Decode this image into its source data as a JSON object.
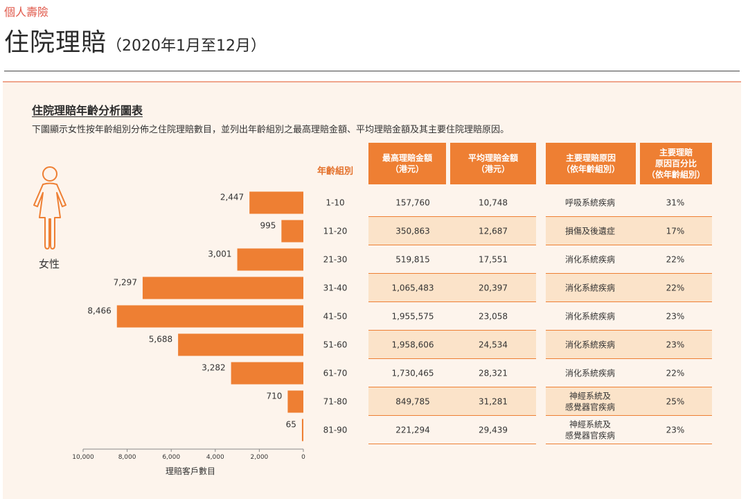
{
  "header": {
    "breadcrumb": "個人壽險",
    "title": "住院理賠",
    "period": "（2020年1月至12月）"
  },
  "section": {
    "title": "住院理賠年齡分析圖表",
    "description": "下圖顯示女性按年齡組別分佈之住院理賠數目，並列出年齡組別之最高理賠金額、平均理賠金額及其主要住院理賠原因。"
  },
  "icon": {
    "name": "female-person-icon",
    "label": "女性"
  },
  "colors": {
    "accent": "#ee7f33",
    "band": "#fbe3c9",
    "panel": "#fdf4ec",
    "breadcrumb": "#e0584a"
  },
  "table_headers": {
    "age_group": "年齡組別",
    "max_claim_line1": "最高理賠金額",
    "max_claim_line2": "（港元）",
    "avg_claim_line1": "平均理賠金額",
    "avg_claim_line2": "（港元）",
    "reason_line1": "主要理賠原因",
    "reason_line2": "（依年齡組別）",
    "pct_line1": "主要理賠",
    "pct_line2": "原因百分比",
    "pct_line3": "（依年齡組別）"
  },
  "chart_data": {
    "type": "bar",
    "orientation": "horizontal",
    "direction": "right-to-left",
    "xlabel": "理賠客戶數目",
    "xlim": [
      10000,
      0
    ],
    "xticks": [
      "10,000",
      "8,000",
      "6,000",
      "4,000",
      "2,000",
      "0"
    ],
    "categories": [
      "1-10",
      "11-20",
      "21-30",
      "31-40",
      "41-50",
      "51-60",
      "61-70",
      "71-80",
      "81-90"
    ],
    "values": [
      2447,
      995,
      3001,
      7297,
      8466,
      5688,
      3282,
      710,
      65
    ],
    "value_labels": [
      "2,447",
      "995",
      "3,001",
      "7,297",
      "8,466",
      "5,688",
      "3,282",
      "710",
      "65"
    ]
  },
  "rows": [
    {
      "age": "1-10",
      "max": "157,760",
      "avg": "10,748",
      "reason": [
        "呼吸系統疾病"
      ],
      "pct": "31%"
    },
    {
      "age": "11-20",
      "max": "350,863",
      "avg": "12,687",
      "reason": [
        "損傷及後遺症"
      ],
      "pct": "17%"
    },
    {
      "age": "21-30",
      "max": "519,815",
      "avg": "17,551",
      "reason": [
        "消化系統疾病"
      ],
      "pct": "22%"
    },
    {
      "age": "31-40",
      "max": "1,065,483",
      "avg": "20,397",
      "reason": [
        "消化系統疾病"
      ],
      "pct": "22%"
    },
    {
      "age": "41-50",
      "max": "1,955,575",
      "avg": "23,058",
      "reason": [
        "消化系統疾病"
      ],
      "pct": "23%"
    },
    {
      "age": "51-60",
      "max": "1,958,606",
      "avg": "24,534",
      "reason": [
        "消化系統疾病"
      ],
      "pct": "23%"
    },
    {
      "age": "61-70",
      "max": "1,730,465",
      "avg": "28,321",
      "reason": [
        "消化系統疾病"
      ],
      "pct": "22%"
    },
    {
      "age": "71-80",
      "max": "849,785",
      "avg": "31,281",
      "reason": [
        "神經系統及",
        "感覺器官疾病"
      ],
      "pct": "25%"
    },
    {
      "age": "81-90",
      "max": "221,294",
      "avg": "29,439",
      "reason": [
        "神經系統及",
        "感覺器官疾病"
      ],
      "pct": "23%"
    }
  ]
}
